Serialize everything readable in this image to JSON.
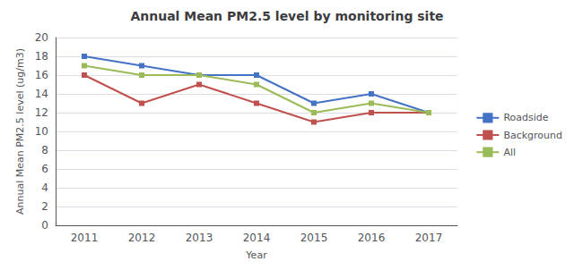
{
  "chart_data": {
    "type": "line",
    "title": "Annual Mean PM2.5 level by monitoring site",
    "x_label": "Year",
    "y_label": "Annual Mean PM2.5 level (ug/m3)",
    "categories": [
      "2011",
      "2012",
      "2013",
      "2014",
      "2015",
      "2016",
      "2017"
    ],
    "series": [
      {
        "name": "Roadside",
        "color": "#4472C4",
        "values": [
          18,
          17,
          16,
          16,
          13,
          14,
          12
        ]
      },
      {
        "name": "Background",
        "color": "#C0504D",
        "values": [
          16,
          13,
          15,
          13,
          11,
          12,
          12
        ]
      },
      {
        "name": "All",
        "color": "#9BBB59",
        "values": [
          17,
          16,
          16,
          15,
          12,
          13,
          12
        ]
      }
    ],
    "ylim": [
      0,
      20
    ],
    "yticks": [
      0,
      2,
      4,
      6,
      8,
      10,
      12,
      14,
      16,
      18,
      20
    ],
    "grid": true,
    "legend": "upper right",
    "marker": "square"
  }
}
